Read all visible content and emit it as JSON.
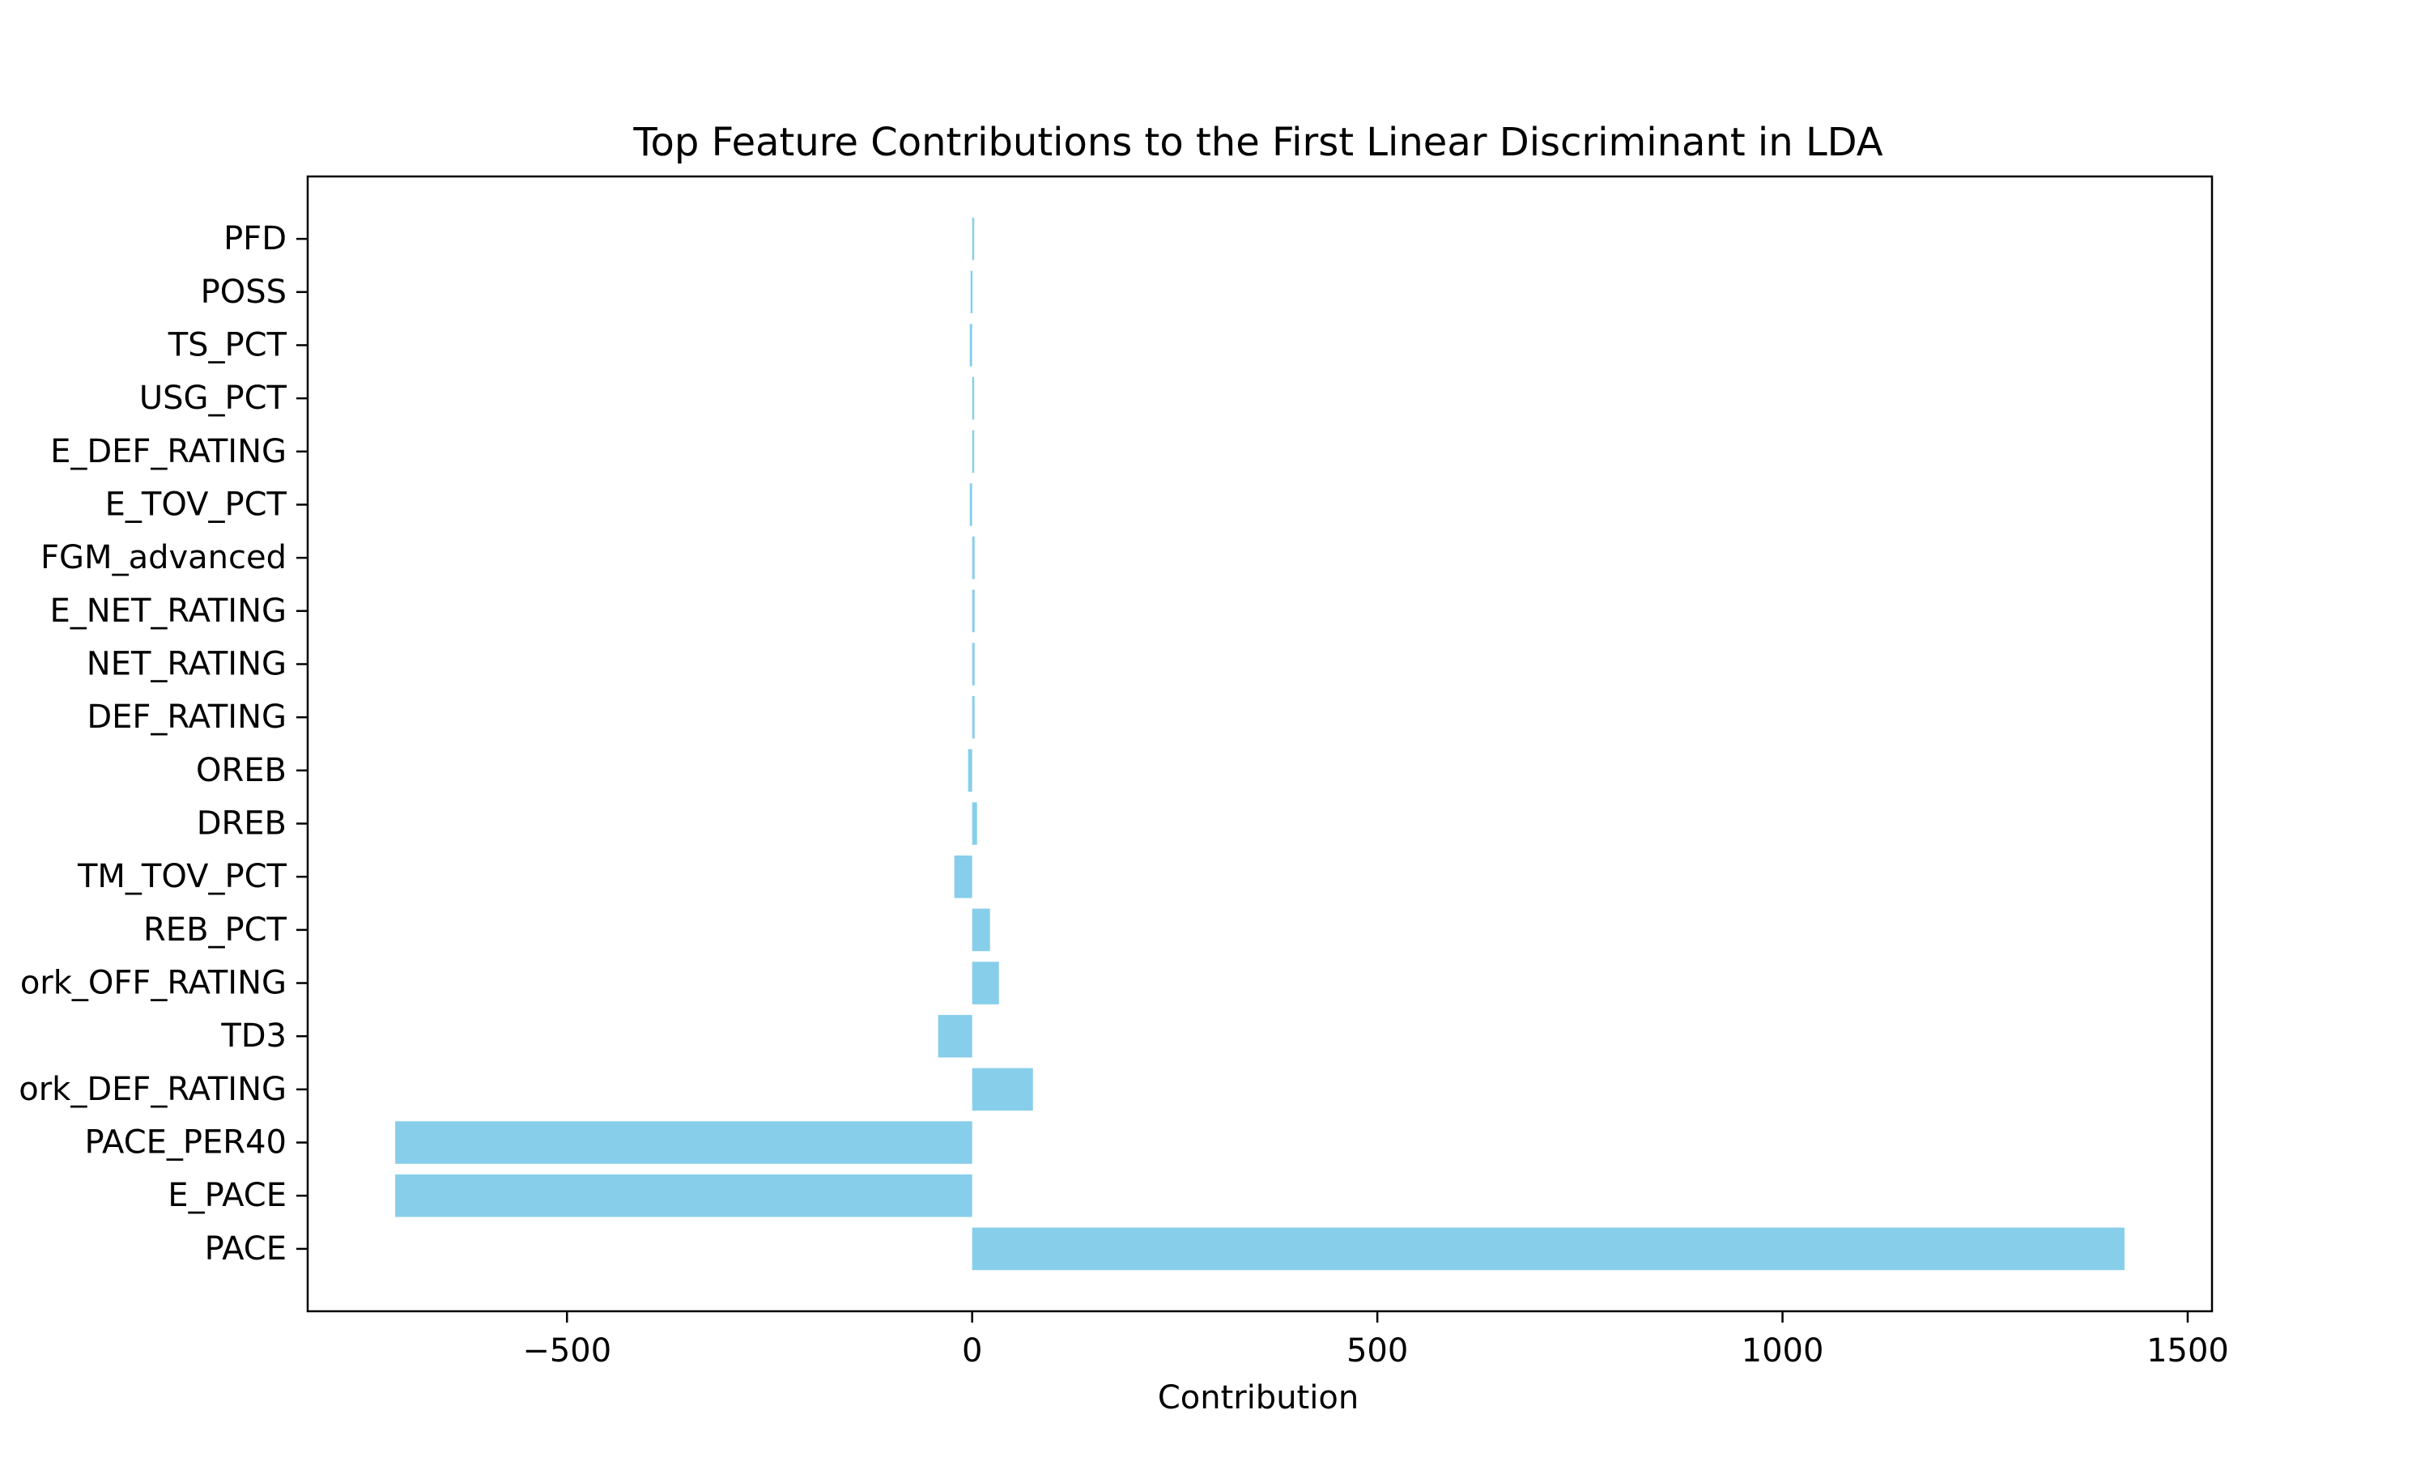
{
  "chart_data": {
    "type": "bar",
    "orientation": "horizontal",
    "title": "Top Feature Contributions to the First Linear Discriminant in LDA",
    "xlabel": "Contribution",
    "ylabel": "",
    "xlim": [
      -820,
      1530
    ],
    "xticks": [
      -500,
      0,
      500,
      1000,
      1500
    ],
    "xtick_labels": [
      "−500",
      "0",
      "500",
      "1000",
      "1500"
    ],
    "grid": false,
    "bar_color": "#87ceeb",
    "categories": [
      "PFD",
      "POSS",
      "TS_PCT",
      "USG_PCT",
      "E_DEF_RATING",
      "E_TOV_PCT",
      "FGM_advanced",
      "E_NET_RATING",
      "NET_RATING",
      "DEF_RATING",
      "OREB",
      "DREB",
      "TM_TOV_PCT",
      "REB_PCT",
      "ork_OFF_RATING",
      "TD3",
      "ork_DEF_RATING",
      "PACE_PER40",
      "E_PACE",
      "PACE"
    ],
    "values": [
      1,
      -2,
      -3,
      2,
      2,
      -3,
      3,
      3,
      3,
      3,
      -5,
      6,
      -22,
      22,
      33,
      -42,
      75,
      -712,
      -712,
      1422
    ]
  }
}
